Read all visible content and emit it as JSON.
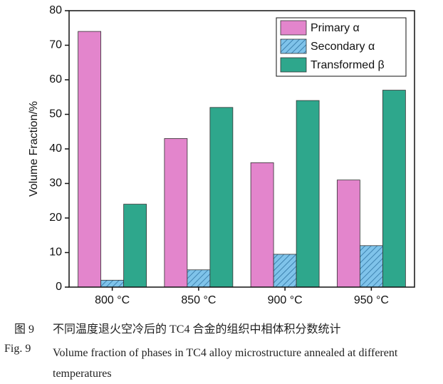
{
  "chart_data": {
    "type": "bar",
    "y_label": "Volume Fraction/%",
    "categories": [
      "800 °C",
      "850 °C",
      "900 °C",
      "950 °C"
    ],
    "series": [
      {
        "name": "Primary α",
        "color": "#e385cc",
        "hatch": false,
        "values": [
          74,
          43,
          36,
          31
        ]
      },
      {
        "name": "Secondary α",
        "color": "#7fc3ea",
        "hatch": true,
        "values": [
          2,
          5,
          9.5,
          12
        ]
      },
      {
        "name": "Transformed β",
        "color": "#2ea78c",
        "hatch": false,
        "values": [
          24,
          52,
          54,
          57
        ]
      }
    ],
    "ylim": [
      0,
      80
    ],
    "yticks": [
      0,
      10,
      20,
      30,
      40,
      50,
      60,
      70,
      80
    ],
    "legend": "upper right"
  },
  "caption": {
    "cn_label": "图 9",
    "cn_text": "不同温度退火空冷后的 TC4 合金的组织中相体积分数统计",
    "en_label": "Fig. 9",
    "en_text": "Volume fraction of phases in TC4 alloy microstructure annealed at different temperatures"
  }
}
